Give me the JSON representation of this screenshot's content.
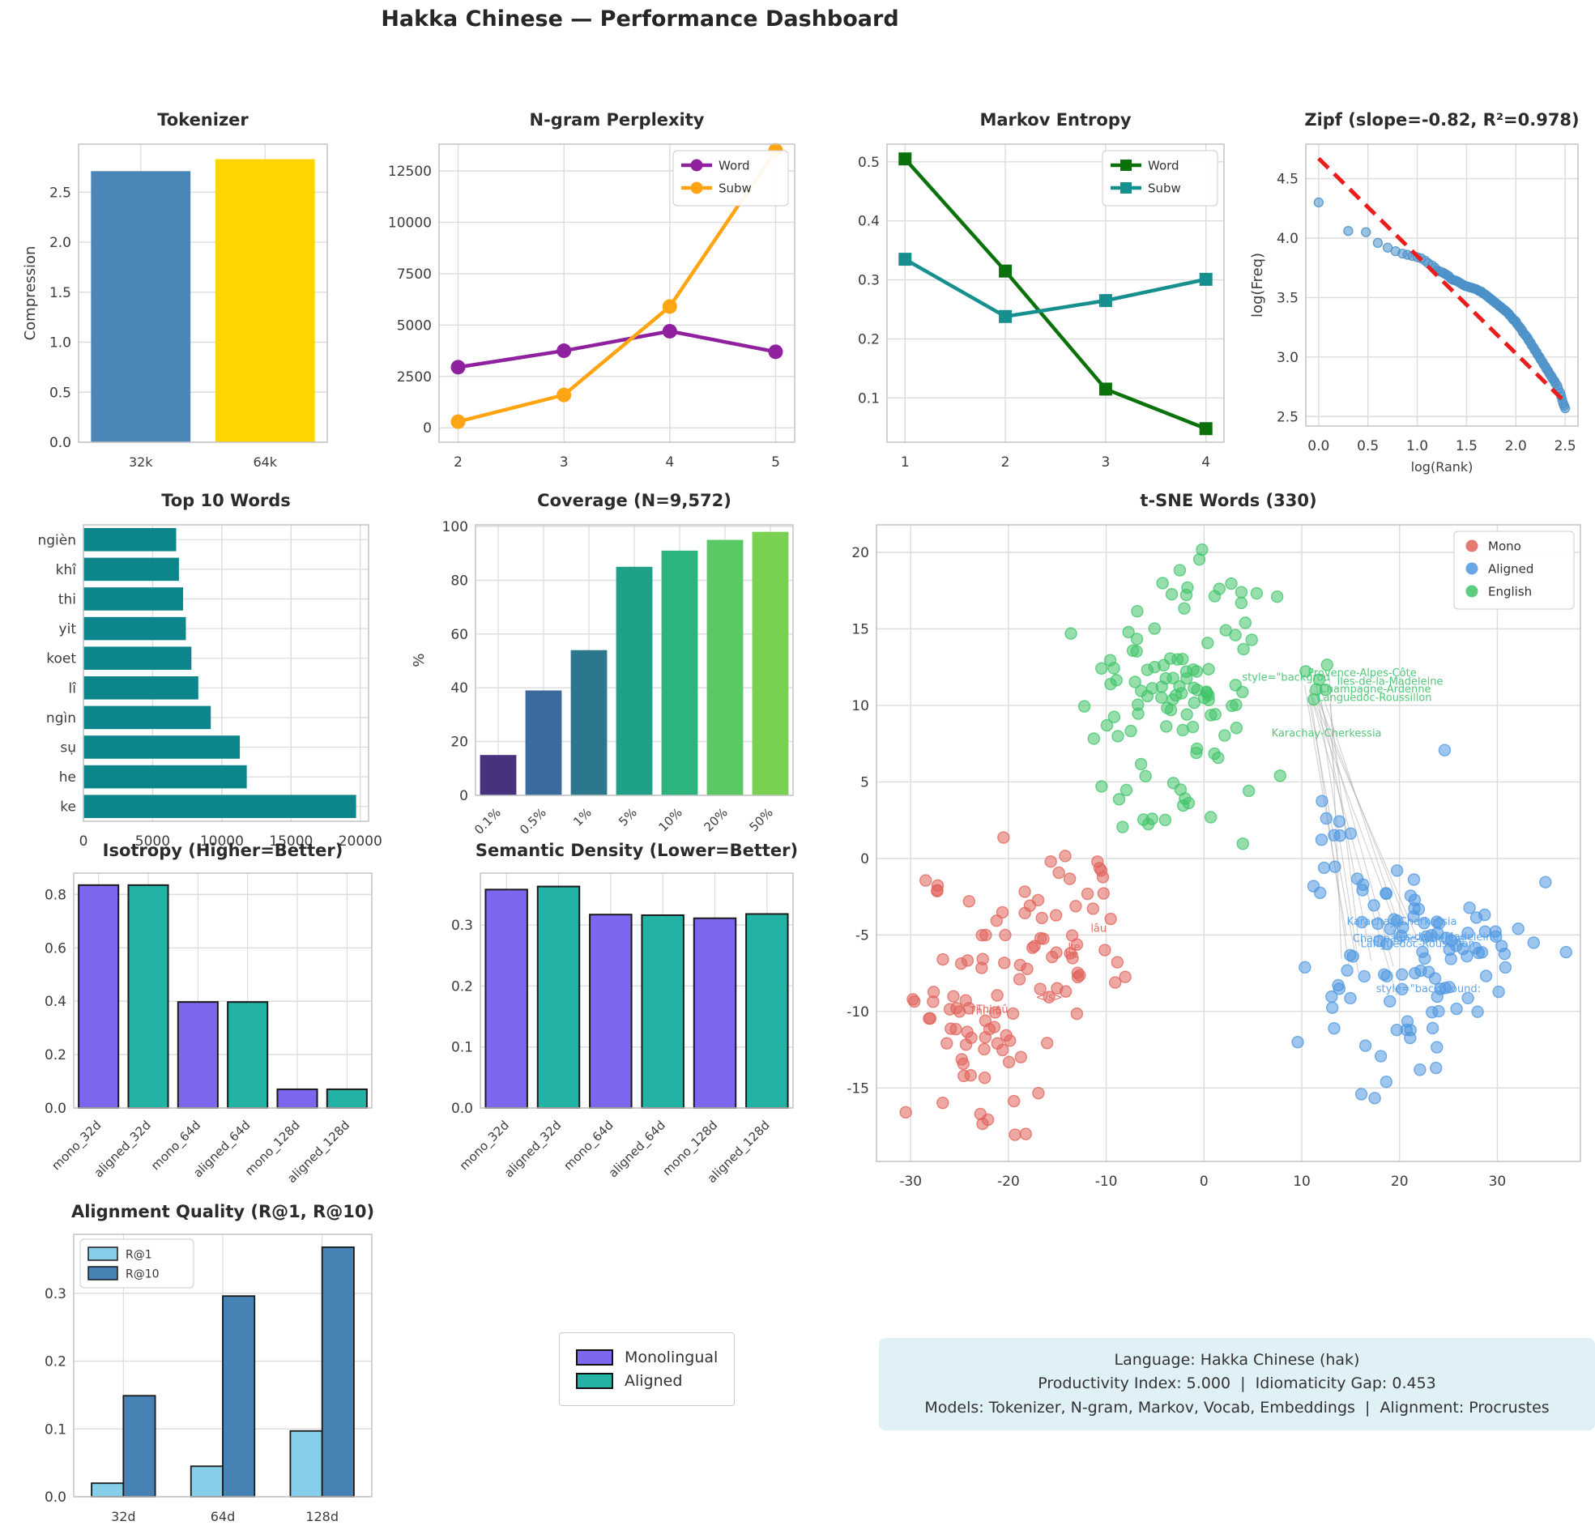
{
  "dashboard_title": "Hakka Chinese — Performance Dashboard",
  "chart_data": [
    {
      "id": "tokenizer",
      "type": "bar",
      "title": "Tokenizer",
      "ylabel": "Compression",
      "categories": [
        "32k",
        "64k"
      ],
      "values": [
        2.71,
        2.83
      ],
      "bar_colors": [
        "#4a86b8",
        "#ffd400"
      ],
      "yticks": [
        0,
        0.5,
        1.0,
        1.5,
        2.0,
        2.5
      ],
      "ydec": 1,
      "ylim": [
        0,
        2.98
      ]
    },
    {
      "id": "ngram",
      "type": "line",
      "title": "N-gram Perplexity",
      "x": [
        2,
        3,
        4,
        5
      ],
      "xticks": [
        2,
        3,
        4,
        5
      ],
      "xlim": [
        1.82,
        5.18
      ],
      "yticks": [
        0,
        2500,
        5000,
        7500,
        10000,
        12500
      ],
      "ylim": [
        -700,
        13800
      ],
      "legend_pos": "top-right",
      "series": [
        {
          "name": "Word",
          "color": "#8f219f",
          "marker": "circle",
          "values": [
            2950,
            3750,
            4700,
            3700
          ]
        },
        {
          "name": "Subw",
          "color": "#ffa513",
          "marker": "circle",
          "values": [
            300,
            1600,
            5900,
            13500
          ]
        }
      ]
    },
    {
      "id": "markov",
      "type": "line",
      "title": "Markov Entropy",
      "x": [
        1,
        2,
        3,
        4
      ],
      "xticks": [
        1,
        2,
        3,
        4
      ],
      "xlim": [
        0.82,
        4.18
      ],
      "yticks": [
        0.1,
        0.2,
        0.3,
        0.4,
        0.5
      ],
      "ydec": 1,
      "ylim": [
        0.025,
        0.53
      ],
      "legend_pos": "top-right",
      "series": [
        {
          "name": "Word",
          "color": "#0b720b",
          "marker": "square",
          "values": [
            0.505,
            0.315,
            0.115,
            0.048
          ]
        },
        {
          "name": "Subw",
          "color": "#178f8f",
          "marker": "square",
          "values": [
            0.335,
            0.238,
            0.265,
            0.301
          ]
        }
      ]
    },
    {
      "id": "zipf",
      "type": "scatter",
      "title": "Zipf (slope=-0.82, R²=0.978)",
      "xlabel": "log(Rank)",
      "ylabel": "log(Freq)",
      "xticks": [
        0.0,
        0.5,
        1.0,
        1.5,
        2.0,
        2.5
      ],
      "xdec": 1,
      "xlim": [
        -0.13,
        2.63
      ],
      "yticks": [
        2.5,
        3.0,
        3.5,
        4.0,
        4.5
      ],
      "ydec": 1,
      "ylim": [
        2.42,
        4.79
      ],
      "point_color": "#4a90c8",
      "fit_line": {
        "color": "#ea1d1d",
        "slope": -0.82,
        "r2": 0.978,
        "x1": 0.0,
        "y1": 4.67,
        "x2": 2.47,
        "y2": 2.645
      },
      "points": [
        [
          0.0,
          4.3
        ],
        [
          0.3,
          4.06
        ],
        [
          0.48,
          4.05
        ],
        [
          0.6,
          3.96
        ],
        [
          0.7,
          3.92
        ],
        [
          0.78,
          3.89
        ],
        [
          0.85,
          3.87
        ],
        [
          0.9,
          3.86
        ],
        [
          0.95,
          3.85
        ],
        [
          1.0,
          3.84
        ],
        [
          1.04,
          3.83
        ],
        [
          1.08,
          3.81
        ],
        [
          1.11,
          3.79
        ],
        [
          1.15,
          3.77
        ],
        [
          1.18,
          3.75
        ],
        [
          1.2,
          3.73
        ],
        [
          1.23,
          3.72
        ],
        [
          1.26,
          3.71
        ],
        [
          1.28,
          3.7
        ],
        [
          1.3,
          3.69
        ],
        [
          1.32,
          3.68
        ],
        [
          1.34,
          3.66
        ],
        [
          1.36,
          3.65
        ],
        [
          1.38,
          3.645
        ],
        [
          1.4,
          3.64
        ],
        [
          1.42,
          3.63
        ],
        [
          1.44,
          3.62
        ],
        [
          1.46,
          3.61
        ],
        [
          1.48,
          3.6
        ],
        [
          1.5,
          3.595
        ],
        [
          1.52,
          3.59
        ],
        [
          1.54,
          3.585
        ],
        [
          1.56,
          3.58
        ],
        [
          1.58,
          3.575
        ],
        [
          1.6,
          3.57
        ],
        [
          1.62,
          3.56
        ],
        [
          1.63,
          3.555
        ],
        [
          1.65,
          3.55
        ],
        [
          1.66,
          3.54
        ],
        [
          1.68,
          3.53
        ],
        [
          1.7,
          3.52
        ],
        [
          1.71,
          3.51
        ],
        [
          1.73,
          3.5
        ],
        [
          1.74,
          3.49
        ],
        [
          1.76,
          3.48
        ],
        [
          1.77,
          3.47
        ],
        [
          1.79,
          3.46
        ],
        [
          1.8,
          3.45
        ],
        [
          1.82,
          3.44
        ],
        [
          1.83,
          3.43
        ],
        [
          1.85,
          3.42
        ],
        [
          1.86,
          3.41
        ],
        [
          1.88,
          3.4
        ],
        [
          1.89,
          3.39
        ],
        [
          1.9,
          3.385
        ],
        [
          1.92,
          3.37
        ],
        [
          1.93,
          3.36
        ],
        [
          1.94,
          3.35
        ],
        [
          1.96,
          3.33
        ],
        [
          1.97,
          3.32
        ],
        [
          1.98,
          3.31
        ],
        [
          2.0,
          3.3
        ],
        [
          2.01,
          3.28
        ],
        [
          2.03,
          3.26
        ],
        [
          2.04,
          3.25
        ],
        [
          2.06,
          3.23
        ],
        [
          2.07,
          3.21
        ],
        [
          2.09,
          3.19
        ],
        [
          2.1,
          3.18
        ],
        [
          2.12,
          3.16
        ],
        [
          2.13,
          3.14
        ],
        [
          2.15,
          3.12
        ],
        [
          2.16,
          3.1
        ],
        [
          2.18,
          3.08
        ],
        [
          2.19,
          3.06
        ],
        [
          2.21,
          3.04
        ],
        [
          2.22,
          3.02
        ],
        [
          2.24,
          3.0
        ],
        [
          2.25,
          2.98
        ],
        [
          2.27,
          2.96
        ],
        [
          2.28,
          2.94
        ],
        [
          2.3,
          2.92
        ],
        [
          2.31,
          2.9
        ],
        [
          2.33,
          2.88
        ],
        [
          2.34,
          2.86
        ],
        [
          2.36,
          2.84
        ],
        [
          2.37,
          2.82
        ],
        [
          2.39,
          2.8
        ],
        [
          2.4,
          2.78
        ],
        [
          2.42,
          2.76
        ],
        [
          2.43,
          2.73
        ],
        [
          2.45,
          2.7
        ],
        [
          2.46,
          2.67
        ],
        [
          2.47,
          2.64
        ],
        [
          2.48,
          2.61
        ],
        [
          2.49,
          2.59
        ],
        [
          2.5,
          2.57
        ]
      ]
    },
    {
      "id": "top_words",
      "type": "hbar",
      "title": "Top 10 Words",
      "categories": [
        "ke",
        "he",
        "sụ",
        "ngìn",
        "lî",
        "koet",
        "yit",
        "thi",
        "khî",
        "ngièn"
      ],
      "values": [
        19700,
        11800,
        11300,
        9200,
        8300,
        7800,
        7400,
        7200,
        6900,
        6700
      ],
      "bar_color": "#0d868b",
      "xticks": [
        0,
        5000,
        10000,
        15000,
        20000
      ],
      "xlim": [
        0,
        20600
      ]
    },
    {
      "id": "coverage",
      "type": "bar",
      "title": "Coverage (N=9,572)",
      "ylabel": "%",
      "categories": [
        "0.1%",
        "0.5%",
        "1%",
        "5%",
        "10%",
        "20%",
        "50%"
      ],
      "values": [
        15,
        39,
        54,
        85,
        91,
        95,
        98
      ],
      "bar_colors": [
        "#46327e",
        "#3b6a9d",
        "#2b788e",
        "#1fa187",
        "#2db47c",
        "#5ac864",
        "#7ad151"
      ],
      "yticks": [
        0,
        20,
        40,
        60,
        80,
        100
      ],
      "ylim": [
        0,
        100.6
      ],
      "rotate_xticks": true
    },
    {
      "id": "tsne",
      "type": "scatter-clusters",
      "title": "t-SNE Words (330)",
      "xticks": [
        -30,
        -20,
        -10,
        0,
        10,
        20,
        30
      ],
      "xlim": [
        -33.5,
        38.5
      ],
      "yticks": [
        -15,
        -10,
        -5,
        0,
        5,
        10,
        15,
        20
      ],
      "ylim": [
        -19.8,
        21.8
      ],
      "legend_pos": "top-right",
      "legend": [
        {
          "name": "Mono",
          "color": "#e0635a"
        },
        {
          "name": "Aligned",
          "color": "#4f97e0"
        },
        {
          "name": "English",
          "color": "#3fc468"
        }
      ],
      "clusters": [
        {
          "name": "Mono",
          "color": "#e0635a",
          "seed": 5,
          "blobs": [
            [
              -22,
              -10.5,
              3.9,
              3.3,
              62
            ],
            [
              -13.5,
              -4.8,
              3.4,
              2.9,
              44
            ],
            [
              -27,
              -2.5,
              1.6,
              1.3,
              4
            ]
          ]
        },
        {
          "name": "Aligned",
          "color": "#4f97e0",
          "seed": 9,
          "blobs": [
            [
              20.5,
              -6.5,
              5.2,
              3.4,
              92
            ],
            [
              13,
              2.2,
              1.3,
              0.9,
              7
            ],
            [
              30.5,
              -4.2,
              2.6,
              1.6,
              8
            ],
            [
              22,
              -13,
              3.0,
              1.5,
              5
            ]
          ]
        },
        {
          "name": "English",
          "color": "#3fc468",
          "seed": 13,
          "blobs": [
            [
              -3,
              10.5,
              4.6,
              4.0,
              96
            ],
            [
              3.5,
              17.5,
              2.0,
              1.5,
              6
            ],
            [
              -7.5,
              2.8,
              1.5,
              0.9,
              4
            ],
            [
              1.2,
              19.5,
              0.8,
              0.5,
              2
            ],
            [
              7.2,
              16.8,
              0.5,
              0.4,
              1
            ],
            [
              11.8,
              11.3,
              0.9,
              0.8,
              6
            ]
          ]
        }
      ],
      "connections": {
        "count": 13,
        "seed": 3,
        "color": "#9a9a9a",
        "x1": [
          10.2,
          13.2
        ],
        "y1": [
          9.8,
          11.8
        ],
        "x2": [
          13,
          23
        ],
        "y2": [
          -9,
          -4
        ]
      },
      "annotations": [
        {
          "x": 3.9,
          "y": 11.6,
          "t": "style=\"backgrou",
          "c": "#49c573"
        },
        {
          "x": 10.6,
          "y": 11.9,
          "t": "Provence-Alpes-Côte",
          "c": "#49c573"
        },
        {
          "x": 13.6,
          "y": 11.35,
          "t": "Îles-de-la-Madeleine",
          "c": "#49c573"
        },
        {
          "x": 11.8,
          "y": 10.85,
          "t": "Champagne-Ardenne",
          "c": "#49c573"
        },
        {
          "x": 11.6,
          "y": 10.3,
          "t": "Languedoc-Roussillon",
          "c": "#49c573"
        },
        {
          "x": 6.9,
          "y": 7.95,
          "t": "Karachay-Cherkessia",
          "c": "#49c573"
        },
        {
          "x": 14.6,
          "y": -4.35,
          "t": "Karachay-Cherkessia",
          "c": "#58a0e8"
        },
        {
          "x": 15.2,
          "y": -5.45,
          "t": "Champagne-Ardenne",
          "c": "#58a0e8"
        },
        {
          "x": 16.0,
          "y": -5.8,
          "t": "Languedoc-Roussillon",
          "c": "#58a0e8"
        },
        {
          "x": 19.3,
          "y": -5.35,
          "t": "Îles-de-la-Madeleine",
          "c": "#58a0e8"
        },
        {
          "x": 17.6,
          "y": -8.75,
          "t": "style=\"background:",
          "c": "#58a0e8"
        },
        {
          "x": -11.6,
          "y": -4.8,
          "t": "lâu",
          "c": "#e0635a"
        },
        {
          "x": -13.9,
          "y": -6.0,
          "t": "ke",
          "c": "#e0635a"
        },
        {
          "x": -14.2,
          "y": -6.45,
          "t": "he",
          "c": "#e0635a"
        },
        {
          "x": -17.2,
          "y": -9.3,
          "t": "</s>",
          "c": "#e0635a"
        },
        {
          "x": -23.3,
          "y": -10.1,
          "t": "Thi-sû",
          "c": "#e0635a"
        },
        {
          "x": -24.0,
          "y": -10.2,
          "t": "Thi-liû",
          "c": "#e0635a"
        }
      ]
    },
    {
      "id": "isotropy",
      "type": "bar",
      "title": "Isotropy (Higher=Better)",
      "categories": [
        "mono_32d",
        "aligned_32d",
        "mono_64d",
        "aligned_64d",
        "mono_128d",
        "aligned_128d"
      ],
      "values": [
        0.835,
        0.835,
        0.397,
        0.397,
        0.07,
        0.07
      ],
      "alt_colors": [
        "#7B68EE",
        "#22B2A6"
      ],
      "edge": true,
      "yticks": [
        0,
        0.2,
        0.4,
        0.6,
        0.8
      ],
      "ydec": 1,
      "ylim": [
        0,
        0.88
      ],
      "rotate_xticks": true
    },
    {
      "id": "density",
      "type": "bar",
      "title": "Semantic Density (Lower=Better)",
      "categories": [
        "mono_32d",
        "aligned_32d",
        "mono_64d",
        "aligned_64d",
        "mono_128d",
        "aligned_128d"
      ],
      "values": [
        0.358,
        0.363,
        0.317,
        0.316,
        0.311,
        0.318
      ],
      "alt_colors": [
        "#7B68EE",
        "#22B2A6"
      ],
      "edge": true,
      "yticks": [
        0,
        0.1,
        0.2,
        0.3
      ],
      "ydec": 1,
      "ylim": [
        0,
        0.385
      ],
      "rotate_xticks": true
    },
    {
      "id": "alignment",
      "type": "grouped-bar",
      "title": "Alignment Quality (R@1, R@10)",
      "categories": [
        "32d",
        "64d",
        "128d"
      ],
      "yticks": [
        0,
        0.1,
        0.2,
        0.3
      ],
      "ydec": 1,
      "ylim": [
        0,
        0.387
      ],
      "legend_pos": "top-left",
      "series": [
        {
          "name": "R@1",
          "color": "#87CEEB",
          "values": [
            0.02,
            0.045,
            0.097
          ]
        },
        {
          "name": "R@10",
          "color": "#4682B4",
          "values": [
            0.149,
            0.296,
            0.368
          ]
        }
      ]
    }
  ],
  "legend_panel": {
    "items": [
      {
        "label": "Monolingual",
        "color": "#7B68EE"
      },
      {
        "label": "Aligned",
        "color": "#22B2A6"
      }
    ]
  },
  "info_box": {
    "lines": [
      "Language: Hakka Chinese (hak)",
      "Productivity Index: 5.000  |  Idiomaticity Gap: 0.453",
      "Models: Tokenizer, N-gram, Markov, Vocab, Embeddings  |  Alignment: Procrustes"
    ]
  }
}
